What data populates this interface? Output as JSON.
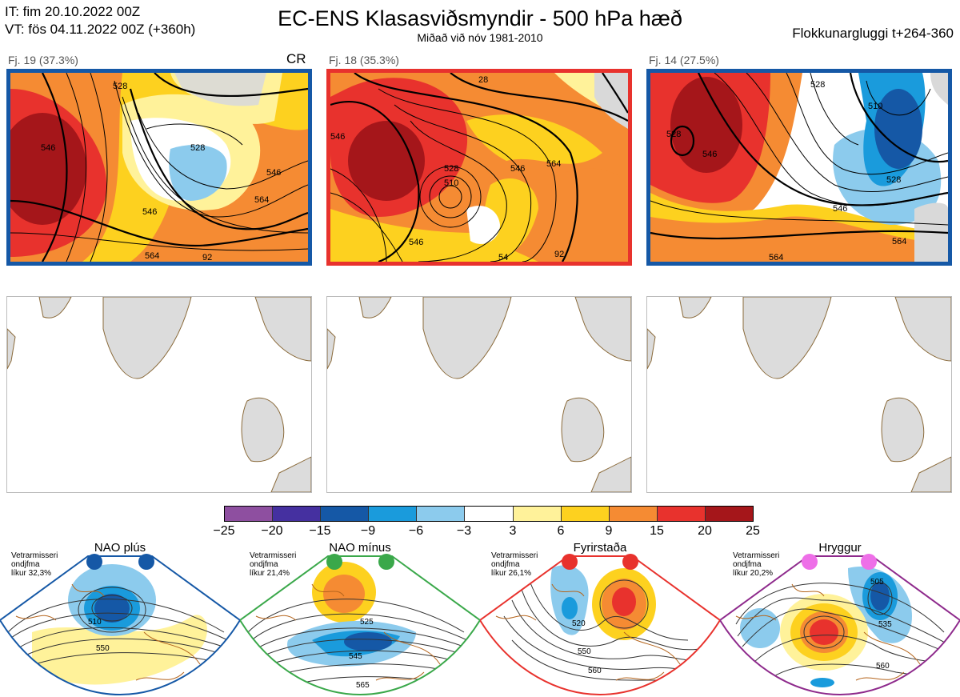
{
  "header": {
    "it_line": "IT: fim 20.10.2022 00Z",
    "vt_line": "VT: fös 04.11.2022 00Z  (+360h)",
    "title": "EC-ENS Klasasviðsmyndir - 500 hPa hæð",
    "subtitle": "Miðað við nóv 1981-2010",
    "window": "Flokkunargluggi t+264-360"
  },
  "clusters": [
    {
      "label": "Fj. 19 (37.3%)",
      "border_color": "#1558a6",
      "tag": "CR"
    },
    {
      "label": "Fj. 18 (35.3%)",
      "border_color": "#e8322d",
      "tag": ""
    },
    {
      "label": "Fj. 14 (27.5%)",
      "border_color": "#1558a6",
      "tag": ""
    }
  ],
  "contour_labels": {
    "c1": [
      "528",
      "546",
      "546",
      "564",
      "564",
      "546",
      "528",
      "92"
    ],
    "c2": [
      "510",
      "528",
      "546",
      "546",
      "564",
      "546",
      "54",
      "92",
      "28"
    ],
    "c3": [
      "528",
      "546",
      "510",
      "528",
      "546",
      "564",
      "564",
      "528"
    ]
  },
  "colorbar": {
    "colors": [
      "#8e4fa0",
      "#4530a0",
      "#1558a6",
      "#1a9bdc",
      "#8ccbed",
      "#ffffff",
      "#fff29a",
      "#fdd11f",
      "#f58b33",
      "#e8322d",
      "#a5161a"
    ],
    "ticks": [
      "−25",
      "−20",
      "−15",
      "−9",
      "−6",
      "−3",
      "3",
      "6",
      "9",
      "15",
      "20",
      "25"
    ]
  },
  "regimes": [
    {
      "name": "NAO plús",
      "note": [
        "Vetrarmisseri",
        "ondjfma",
        "líkur 32,3%"
      ],
      "color": "#1558a6",
      "labels": [
        "510",
        "550"
      ]
    },
    {
      "name": "NAO mínus",
      "note": [
        "Vetrarmisseri",
        "ondjfma",
        "líkur 21,4%"
      ],
      "color": "#3aa84a",
      "labels": [
        "525",
        "545",
        "565"
      ]
    },
    {
      "name": "Fyrirstaða",
      "note": [
        "Vetrarmisseri",
        "ondjfma",
        "líkur 26,1%"
      ],
      "color": "#e8322d",
      "labels": [
        "520",
        "550",
        "560"
      ]
    },
    {
      "name": "Hryggur",
      "note": [
        "Vetrarmisseri",
        "ondjfma",
        "líkur 20,2%"
      ],
      "color": "#b23fa8",
      "labels": [
        "505",
        "535",
        "560"
      ]
    }
  ]
}
